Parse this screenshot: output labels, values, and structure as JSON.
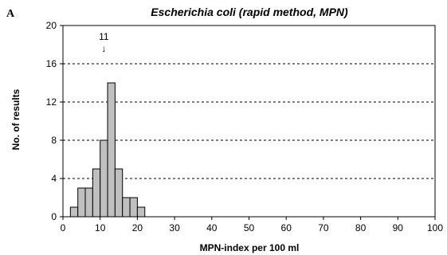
{
  "panel_label": "A",
  "chart_data": {
    "type": "bar",
    "title": "Escherichia coli (rapid method, MPN)",
    "xlabel": "MPN-index per 100 ml",
    "ylabel": "No. of results",
    "xlim": [
      0,
      100
    ],
    "ylim": [
      0,
      20
    ],
    "x_ticks": [
      "0",
      "10",
      "20",
      "30",
      "40",
      "50",
      "60",
      "70",
      "80",
      "90",
      "100"
    ],
    "y_ticks": [
      "0",
      "4",
      "8",
      "12",
      "16",
      "20"
    ],
    "bin_width": 2,
    "bins": [
      {
        "start": 2,
        "value": 1
      },
      {
        "start": 4,
        "value": 3
      },
      {
        "start": 6,
        "value": 3
      },
      {
        "start": 8,
        "value": 5
      },
      {
        "start": 10,
        "value": 8
      },
      {
        "start": 12,
        "value": 14
      },
      {
        "start": 14,
        "value": 5
      },
      {
        "start": 16,
        "value": 2
      },
      {
        "start": 18,
        "value": 2
      },
      {
        "start": 20,
        "value": 1
      }
    ],
    "annotation": {
      "text": "11",
      "arrow": "↓",
      "x": 11
    },
    "gridlines_dashed_at": [
      4,
      8,
      12,
      16
    ],
    "bar_color": "#c0c0c0",
    "legend": "none"
  }
}
